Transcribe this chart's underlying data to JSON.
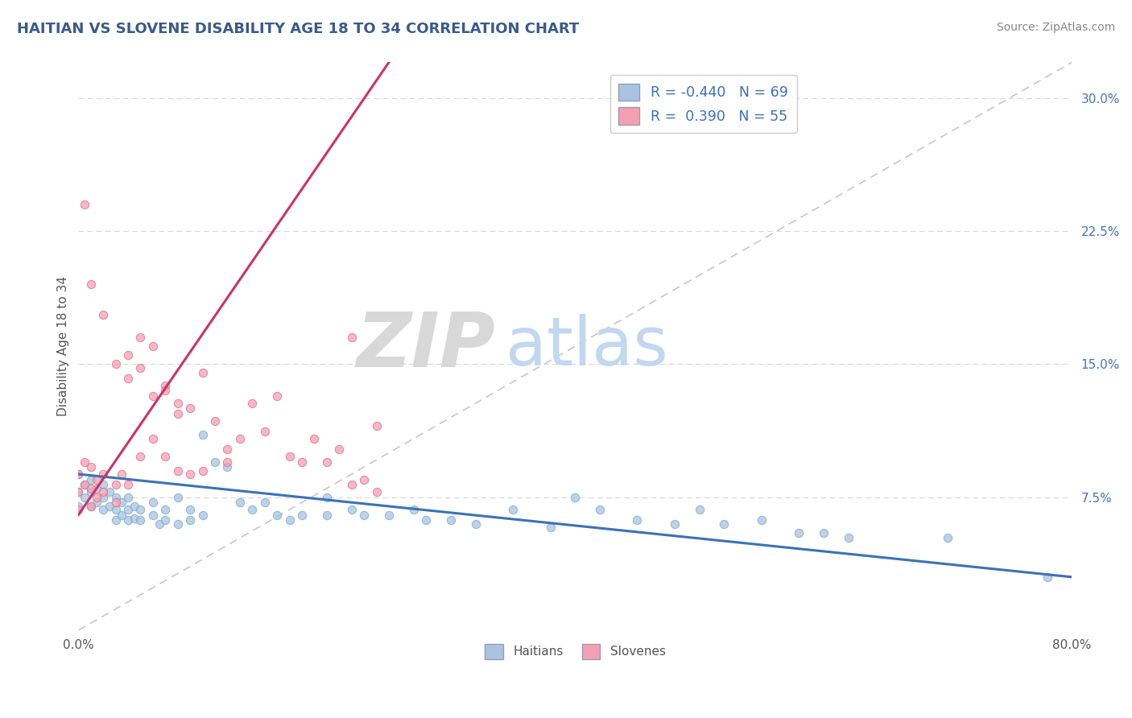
{
  "title": "HAITIAN VS SLOVENE DISABILITY AGE 18 TO 34 CORRELATION CHART",
  "title_color": "#3a5a8c",
  "title_fontsize": 13,
  "source_text": "Source: ZipAtlas.com",
  "ylabel": "Disability Age 18 to 34",
  "xmin": 0.0,
  "xmax": 0.8,
  "ymin": 0.0,
  "ymax": 0.32,
  "haitian_color": "#a8c4e0",
  "haitian_edge": "#7aaad0",
  "slovene_color": "#f4a0b0",
  "slovene_edge": "#e07090",
  "haitian_R": -0.44,
  "haitian_N": 69,
  "slovene_R": 0.39,
  "slovene_N": 55,
  "trend_color_haitian": "#3a72b8",
  "trend_color_slovene": "#cc3366",
  "watermark_zip": "ZIP",
  "watermark_atlas": "atlas",
  "watermark_zip_color": "#d8d8d8",
  "watermark_atlas_color": "#c0d8f0",
  "haitian_trend_x0": 0.0,
  "haitian_trend_y0": 0.088,
  "haitian_trend_x1": 0.8,
  "haitian_trend_y1": 0.03,
  "slovene_trend_x0": 0.0,
  "slovene_trend_y0": 0.065,
  "slovene_trend_x1": 0.25,
  "slovene_trend_y1": 0.32,
  "ref_line_color": "#c8c8c8",
  "grid_color": "#d8d8d8",
  "haitian_x": [
    0.0,
    0.0,
    0.0,
    0.005,
    0.005,
    0.01,
    0.01,
    0.01,
    0.015,
    0.015,
    0.02,
    0.02,
    0.02,
    0.025,
    0.025,
    0.03,
    0.03,
    0.03,
    0.035,
    0.035,
    0.04,
    0.04,
    0.04,
    0.045,
    0.045,
    0.05,
    0.05,
    0.06,
    0.06,
    0.065,
    0.07,
    0.07,
    0.08,
    0.08,
    0.09,
    0.09,
    0.1,
    0.1,
    0.11,
    0.12,
    0.13,
    0.14,
    0.15,
    0.16,
    0.17,
    0.18,
    0.2,
    0.2,
    0.22,
    0.23,
    0.25,
    0.27,
    0.28,
    0.3,
    0.32,
    0.35,
    0.38,
    0.4,
    0.42,
    0.45,
    0.48,
    0.5,
    0.52,
    0.55,
    0.58,
    0.6,
    0.62,
    0.7,
    0.78
  ],
  "haitian_y": [
    0.088,
    0.078,
    0.07,
    0.082,
    0.075,
    0.085,
    0.078,
    0.07,
    0.08,
    0.072,
    0.082,
    0.075,
    0.068,
    0.078,
    0.07,
    0.075,
    0.068,
    0.062,
    0.072,
    0.065,
    0.075,
    0.068,
    0.062,
    0.07,
    0.063,
    0.068,
    0.062,
    0.072,
    0.065,
    0.06,
    0.068,
    0.062,
    0.075,
    0.06,
    0.068,
    0.062,
    0.11,
    0.065,
    0.095,
    0.092,
    0.072,
    0.068,
    0.072,
    0.065,
    0.062,
    0.065,
    0.075,
    0.065,
    0.068,
    0.065,
    0.065,
    0.068,
    0.062,
    0.062,
    0.06,
    0.068,
    0.058,
    0.075,
    0.068,
    0.062,
    0.06,
    0.068,
    0.06,
    0.062,
    0.055,
    0.055,
    0.052,
    0.052,
    0.03
  ],
  "slovene_x": [
    0.0,
    0.0,
    0.0,
    0.005,
    0.005,
    0.01,
    0.01,
    0.01,
    0.015,
    0.015,
    0.02,
    0.02,
    0.03,
    0.03,
    0.035,
    0.04,
    0.04,
    0.05,
    0.05,
    0.06,
    0.06,
    0.07,
    0.07,
    0.08,
    0.08,
    0.09,
    0.09,
    0.1,
    0.1,
    0.11,
    0.12,
    0.12,
    0.13,
    0.14,
    0.15,
    0.16,
    0.17,
    0.18,
    0.19,
    0.2,
    0.21,
    0.22,
    0.23,
    0.24,
    0.005,
    0.01,
    0.02,
    0.03,
    0.04,
    0.05,
    0.06,
    0.07,
    0.08,
    0.22,
    0.24
  ],
  "slovene_y": [
    0.088,
    0.078,
    0.068,
    0.095,
    0.082,
    0.092,
    0.08,
    0.07,
    0.085,
    0.075,
    0.088,
    0.078,
    0.082,
    0.072,
    0.088,
    0.155,
    0.082,
    0.165,
    0.098,
    0.16,
    0.108,
    0.138,
    0.098,
    0.128,
    0.09,
    0.125,
    0.088,
    0.145,
    0.09,
    0.118,
    0.102,
    0.095,
    0.108,
    0.128,
    0.112,
    0.132,
    0.098,
    0.095,
    0.108,
    0.095,
    0.102,
    0.082,
    0.085,
    0.078,
    0.24,
    0.195,
    0.178,
    0.15,
    0.142,
    0.148,
    0.132,
    0.135,
    0.122,
    0.165,
    0.115
  ]
}
